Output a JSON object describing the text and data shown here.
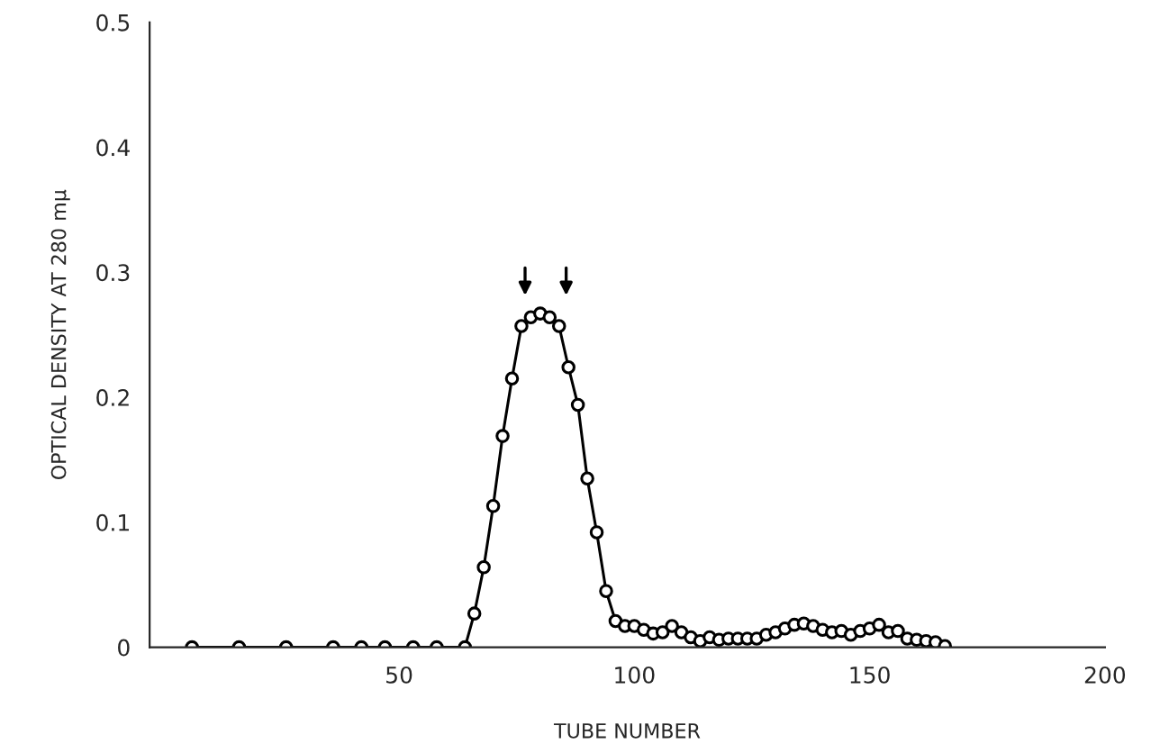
{
  "chart_data": {
    "type": "line",
    "xlabel": "TUBE NUMBER",
    "ylabel": "OPTICAL DENSITY AT 280 mμ",
    "xlim": [
      -3,
      200
    ],
    "xticks": [
      50,
      100,
      150,
      200
    ],
    "ylim": [
      0,
      0.5
    ],
    "yticks": [
      0,
      0.1,
      0.2,
      0.3,
      0.4,
      0.5
    ],
    "marker": "circle",
    "line_style": "solid",
    "grid": false,
    "legend": false,
    "series": [
      {
        "color": "#000000",
        "x": [
          6,
          16,
          26,
          36,
          42,
          47,
          53,
          58,
          64,
          66,
          68,
          70,
          72,
          74,
          76,
          78,
          80,
          82,
          84,
          86,
          88,
          90,
          92,
          94,
          96,
          98,
          100,
          102,
          104,
          106,
          108,
          110,
          112,
          114,
          116,
          118,
          120,
          122,
          124,
          126,
          128,
          130,
          132,
          134,
          136,
          138,
          140,
          142,
          144,
          146,
          148,
          150,
          152,
          154,
          156,
          158,
          160,
          162,
          164,
          166
        ],
        "values": [
          0,
          0,
          0,
          0,
          0,
          0,
          0,
          0,
          0,
          0.027,
          0.064,
          0.113,
          0.169,
          0.215,
          0.257,
          0.264,
          0.267,
          0.264,
          0.257,
          0.224,
          0.194,
          0.135,
          0.092,
          0.045,
          0.021,
          0.017,
          0.017,
          0.014,
          0.011,
          0.012,
          0.017,
          0.012,
          0.008,
          0.005,
          0.008,
          0.006,
          0.007,
          0.007,
          0.007,
          0.007,
          0.01,
          0.012,
          0.015,
          0.018,
          0.019,
          0.017,
          0.014,
          0.012,
          0.013,
          0.01,
          0.013,
          0.015,
          0.018,
          0.012,
          0.013,
          0.007,
          0.006,
          0.005,
          0.004,
          0.001
        ]
      }
    ]
  }
}
